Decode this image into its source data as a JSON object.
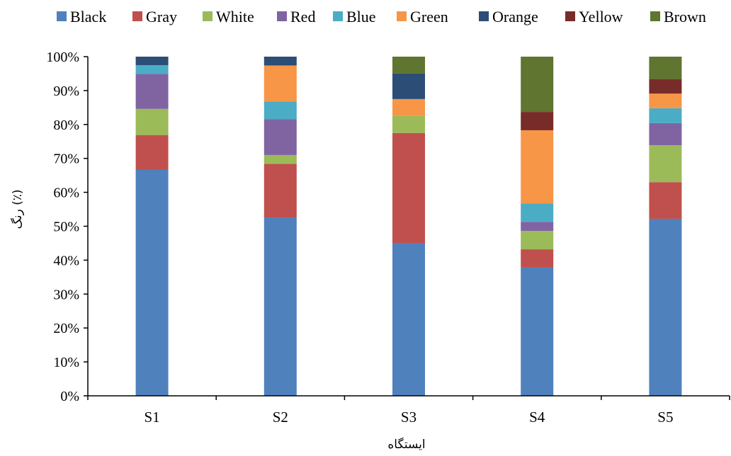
{
  "chart_data": {
    "type": "bar",
    "stacked": true,
    "percent": true,
    "categories": [
      "S1",
      "S2",
      "S3",
      "S4",
      "S5"
    ],
    "series": [
      {
        "name": "Black",
        "color": "#4F81BD",
        "values": [
          66.7,
          52.6,
          45.0,
          37.8,
          52.2
        ]
      },
      {
        "name": "Gray",
        "color": "#C0504D",
        "values": [
          10.2,
          15.8,
          32.5,
          5.4,
          10.8
        ]
      },
      {
        "name": "White",
        "color": "#9BBB59",
        "values": [
          7.7,
          2.6,
          5.0,
          5.4,
          10.9
        ]
      },
      {
        "name": "Red",
        "color": "#8064A2",
        "values": [
          10.3,
          10.6,
          0,
          2.7,
          6.5
        ]
      },
      {
        "name": "Blue",
        "color": "#4BACC6",
        "values": [
          2.6,
          5.2,
          0,
          5.4,
          4.4
        ]
      },
      {
        "name": "Green",
        "color": "#F79646",
        "values": [
          0,
          10.6,
          5.0,
          21.6,
          4.3
        ]
      },
      {
        "name": "Orange",
        "color": "#2C4D75",
        "values": [
          2.5,
          2.6,
          7.5,
          0,
          0
        ]
      },
      {
        "name": "Yellow",
        "color": "#772C2A",
        "values": [
          0,
          0,
          0,
          5.4,
          4.3
        ]
      },
      {
        "name": "Brown",
        "color": "#5F7530",
        "values": [
          0,
          0,
          5.0,
          16.3,
          6.6
        ]
      }
    ],
    "ylim": [
      0,
      100
    ],
    "yticks": [
      "0%",
      "10%",
      "20%",
      "30%",
      "40%",
      "50%",
      "60%",
      "70%",
      "80%",
      "90%",
      "100%"
    ],
    "xlabel": "ایستگاه",
    "ylabel": "رنگ (٪)",
    "legend_position": "top",
    "grid": false
  }
}
